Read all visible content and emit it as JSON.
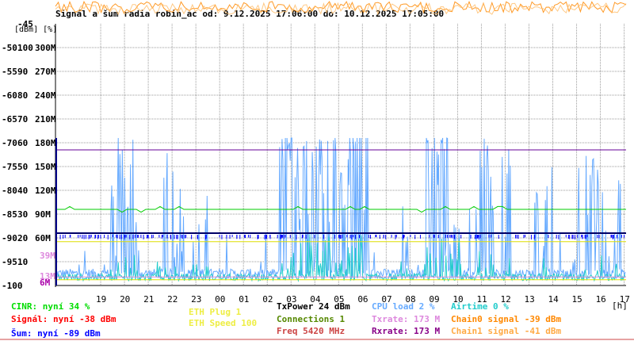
{
  "chart_data": {
    "type": "line",
    "title": "Signál a šum radia robin_ac od: 9.12.2025 17:06:00 do: 10.12.2025 17:05:00",
    "y_unit_label": "[dBm] [%]",
    "x_unit_label": "[h]",
    "x_ticks": [
      "19",
      "20",
      "21",
      "22",
      "23",
      "00",
      "01",
      "02",
      "03",
      "04",
      "05",
      "06",
      "07",
      "08",
      "09",
      "10",
      "11",
      "12",
      "13",
      "14",
      "15",
      "16",
      "17"
    ],
    "x_range_hours": [
      17.1,
      41.08
    ],
    "y_ticks_dbm": [
      -45,
      -50,
      -55,
      -60,
      -65,
      -70,
      -75,
      -80,
      -85,
      -90,
      -95,
      -100
    ],
    "y_ticks_pct": [
      100,
      90,
      80,
      70,
      60,
      50,
      40,
      30,
      20,
      10
    ],
    "y_ticks_rate": [
      "300M",
      "270M",
      "240M",
      "210M",
      "180M",
      "150M",
      "120M",
      "90M",
      "60M"
    ],
    "y_range_dbm": [
      -100,
      -45
    ],
    "extra_right_labels": [
      {
        "text": "39M",
        "color": "#dd88dd"
      },
      {
        "text": "13M",
        "color": "#dd88dd"
      },
      {
        "text": "6M",
        "color": "#aa00aa"
      }
    ],
    "grid": true,
    "series": [
      {
        "name": "CINR",
        "color": "#00dd00",
        "values_note": "percent axis",
        "level_pct": 34
      },
      {
        "name": "Signál",
        "color": "#ff0000",
        "level_dbm": -38
      },
      {
        "name": "Šum",
        "color": "#0000ff",
        "level_dbm": -89
      },
      {
        "name": "Txrate",
        "color": "#77aaff",
        "level_mbps": 173
      },
      {
        "name": "Rxrate",
        "color": "#770077",
        "level_mbps": 173
      },
      {
        "name": "Chain0 signal",
        "color": "#ff8800",
        "level_dbm": -39
      },
      {
        "name": "CPU load",
        "color": "#66aaff",
        "level_pct": 2
      },
      {
        "name": "Airtime",
        "color": "#22cccc",
        "level_pct": 0
      }
    ],
    "reference_lines": [
      {
        "name": "purple",
        "color": "#660099",
        "dbm": -71.5
      },
      {
        "name": "green",
        "color": "#00cc00",
        "dbm": -84
      },
      {
        "name": "yellow",
        "color": "#dddd00",
        "dbm": -90.8
      },
      {
        "name": "navy",
        "color": "#000088",
        "dbm": -89
      }
    ]
  },
  "legend": {
    "col1": [
      {
        "label": "CINR: nyní 34 %",
        "color": "#00dd00"
      },
      {
        "label": "Signál: nyní -38 dBm",
        "color": "#ff0000"
      },
      {
        "label": "Šum: nyní -89 dBm",
        "color": "#0000ff"
      }
    ],
    "col2": [
      {
        "label": "ETH Plug 1",
        "color": "#eeee44"
      },
      {
        "label": "ETH Speed 100",
        "color": "#eeee44"
      }
    ],
    "col3": [
      {
        "label": "TxPower 24 dBm",
        "color": "#000000"
      },
      {
        "label": "Connections 1",
        "color": "#558800"
      },
      {
        "label": "Freq 5420 MHz",
        "color": "#cc4444"
      }
    ],
    "col4": [
      {
        "label": "CPU load 2 %",
        "color": "#66aaff"
      },
      {
        "label": "Txrate: 173 M",
        "color": "#dd88dd"
      },
      {
        "label": "Rxrate: 173 M",
        "color": "#880088"
      }
    ],
    "col5": [
      {
        "label": "Airtime 0 %",
        "color": "#22cccc"
      },
      {
        "label": "Chain0 signal -39 dBm",
        "color": "#ff8800"
      },
      {
        "label": "Chain1 signal -41 dBm",
        "color": "#ffaa44"
      }
    ]
  }
}
